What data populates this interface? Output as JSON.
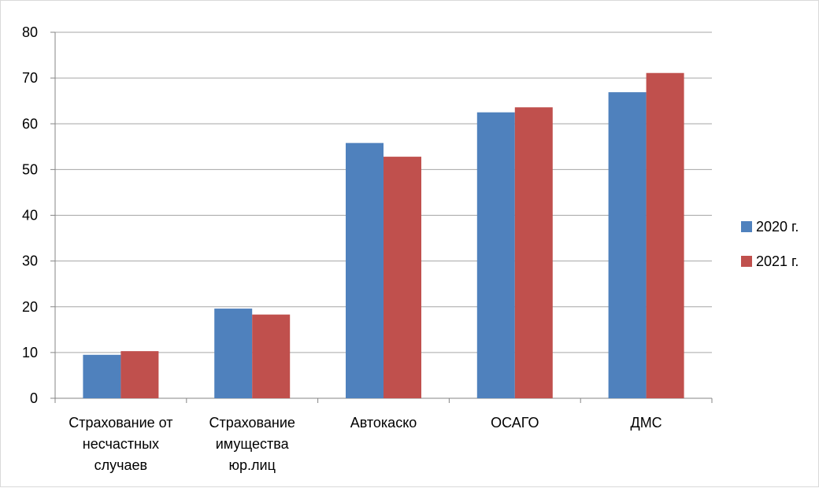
{
  "chart_data": {
    "type": "bar",
    "title": "",
    "xlabel": "",
    "ylabel": "",
    "ylim": [
      0,
      80
    ],
    "yticks": [
      0,
      10,
      20,
      30,
      40,
      50,
      60,
      70,
      80
    ],
    "grid": true,
    "legend_position": "right",
    "categories": [
      [
        "Страхование от",
        "несчастных",
        "случаев"
      ],
      [
        "Страхование",
        "имущества",
        "юр.лиц"
      ],
      [
        "Автокаско"
      ],
      [
        "ОСАГО"
      ],
      [
        "ДМС"
      ]
    ],
    "series": [
      {
        "name": "2020 г.",
        "color": "#4f81bd",
        "values": [
          9.5,
          19.6,
          55.8,
          62.5,
          66.9
        ]
      },
      {
        "name": "2021 г.",
        "color": "#c0504d",
        "values": [
          10.3,
          18.3,
          52.8,
          63.6,
          71.1
        ]
      }
    ]
  }
}
